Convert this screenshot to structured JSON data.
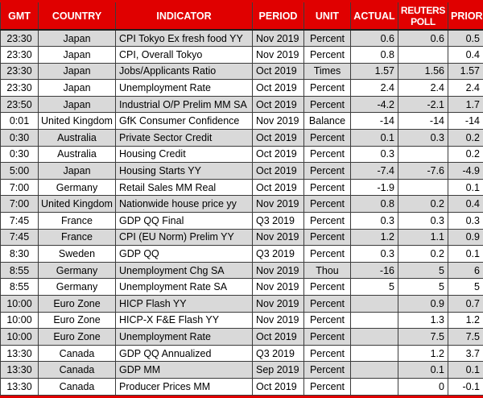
{
  "colors": {
    "header_bg": "#e00000",
    "header_text": "#ffffff",
    "row_bg": "#ffffff",
    "row_alt_bg": "#d9d9d9",
    "grid_line": "#3c3c3c",
    "cell_text": "#000000"
  },
  "table": {
    "columns": [
      {
        "key": "gmt",
        "label": "GMT"
      },
      {
        "key": "country",
        "label": "COUNTRY"
      },
      {
        "key": "indicator",
        "label": "INDICATOR"
      },
      {
        "key": "period",
        "label": "PERIOD"
      },
      {
        "key": "unit",
        "label": "UNIT"
      },
      {
        "key": "actual",
        "label": "ACTUAL"
      },
      {
        "key": "poll",
        "label": "REUTERS POLL"
      },
      {
        "key": "prior",
        "label": "PRIOR"
      }
    ],
    "rows": [
      {
        "gmt": "23:30",
        "country": "Japan",
        "indicator": "CPI Tokyo Ex fresh food YY",
        "period": "Nov 2019",
        "unit": "Percent",
        "actual": "0.6",
        "poll": "0.6",
        "prior": "0.5"
      },
      {
        "gmt": "23:30",
        "country": "Japan",
        "indicator": "CPI, Overall Tokyo",
        "period": "Nov 2019",
        "unit": "Percent",
        "actual": "0.8",
        "poll": "",
        "prior": "0.4"
      },
      {
        "gmt": "23:30",
        "country": "Japan",
        "indicator": "Jobs/Applicants Ratio",
        "period": "Oct 2019",
        "unit": "Times",
        "actual": "1.57",
        "poll": "1.56",
        "prior": "1.57"
      },
      {
        "gmt": "23:30",
        "country": "Japan",
        "indicator": "Unemployment Rate",
        "period": "Oct 2019",
        "unit": "Percent",
        "actual": "2.4",
        "poll": "2.4",
        "prior": "2.4"
      },
      {
        "gmt": "23:50",
        "country": "Japan",
        "indicator": "Industrial O/P Prelim MM SA",
        "period": "Oct 2019",
        "unit": "Percent",
        "actual": "-4.2",
        "poll": "-2.1",
        "prior": "1.7"
      },
      {
        "gmt": "0:01",
        "country": "United Kingdom",
        "indicator": "GfK Consumer Confidence",
        "period": "Nov 2019",
        "unit": "Balance",
        "actual": "-14",
        "poll": "-14",
        "prior": "-14"
      },
      {
        "gmt": "0:30",
        "country": "Australia",
        "indicator": "Private Sector Credit",
        "period": "Oct 2019",
        "unit": "Percent",
        "actual": "0.1",
        "poll": "0.3",
        "prior": "0.2"
      },
      {
        "gmt": "0:30",
        "country": "Australia",
        "indicator": "Housing Credit",
        "period": "Oct 2019",
        "unit": "Percent",
        "actual": "0.3",
        "poll": "",
        "prior": "0.2"
      },
      {
        "gmt": "5:00",
        "country": "Japan",
        "indicator": "Housing Starts YY",
        "period": "Oct 2019",
        "unit": "Percent",
        "actual": "-7.4",
        "poll": "-7.6",
        "prior": "-4.9"
      },
      {
        "gmt": "7:00",
        "country": "Germany",
        "indicator": "Retail Sales MM Real",
        "period": "Oct 2019",
        "unit": "Percent",
        "actual": "-1.9",
        "poll": "",
        "prior": "0.1"
      },
      {
        "gmt": "7:00",
        "country": "United Kingdom",
        "indicator": "Nationwide house price yy",
        "period": "Nov 2019",
        "unit": "Percent",
        "actual": "0.8",
        "poll": "0.2",
        "prior": "0.4"
      },
      {
        "gmt": "7:45",
        "country": "France",
        "indicator": "GDP QQ Final",
        "period": "Q3 2019",
        "unit": "Percent",
        "actual": "0.3",
        "poll": "0.3",
        "prior": "0.3"
      },
      {
        "gmt": "7:45",
        "country": "France",
        "indicator": "CPI (EU Norm) Prelim YY",
        "period": "Nov 2019",
        "unit": "Percent",
        "actual": "1.2",
        "poll": "1.1",
        "prior": "0.9"
      },
      {
        "gmt": "8:30",
        "country": "Sweden",
        "indicator": "GDP QQ",
        "period": "Q3 2019",
        "unit": "Percent",
        "actual": "0.3",
        "poll": "0.2",
        "prior": "0.1"
      },
      {
        "gmt": "8:55",
        "country": "Germany",
        "indicator": "Unemployment Chg SA",
        "period": "Nov 2019",
        "unit": "Thou",
        "actual": "-16",
        "poll": "5",
        "prior": "6"
      },
      {
        "gmt": "8:55",
        "country": "Germany",
        "indicator": "Unemployment Rate SA",
        "period": "Nov 2019",
        "unit": "Percent",
        "actual": "5",
        "poll": "5",
        "prior": "5"
      },
      {
        "gmt": "10:00",
        "country": "Euro Zone",
        "indicator": "HICP Flash YY",
        "period": "Nov 2019",
        "unit": "Percent",
        "actual": "",
        "poll": "0.9",
        "prior": "0.7"
      },
      {
        "gmt": "10:00",
        "country": "Euro Zone",
        "indicator": "HICP-X F&E Flash YY",
        "period": "Nov 2019",
        "unit": "Percent",
        "actual": "",
        "poll": "1.3",
        "prior": "1.2"
      },
      {
        "gmt": "10:00",
        "country": "Euro Zone",
        "indicator": "Unemployment Rate",
        "period": "Oct 2019",
        "unit": "Percent",
        "actual": "",
        "poll": "7.5",
        "prior": "7.5"
      },
      {
        "gmt": "13:30",
        "country": "Canada",
        "indicator": "GDP QQ Annualized",
        "period": "Q3 2019",
        "unit": "Percent",
        "actual": "",
        "poll": "1.2",
        "prior": "3.7"
      },
      {
        "gmt": "13:30",
        "country": "Canada",
        "indicator": "GDP MM",
        "period": "Sep 2019",
        "unit": "Percent",
        "actual": "",
        "poll": "0.1",
        "prior": "0.1"
      },
      {
        "gmt": "13:30",
        "country": "Canada",
        "indicator": "Producer Prices MM",
        "period": "Oct 2019",
        "unit": "Percent",
        "actual": "",
        "poll": "0",
        "prior": "-0.1"
      }
    ]
  }
}
